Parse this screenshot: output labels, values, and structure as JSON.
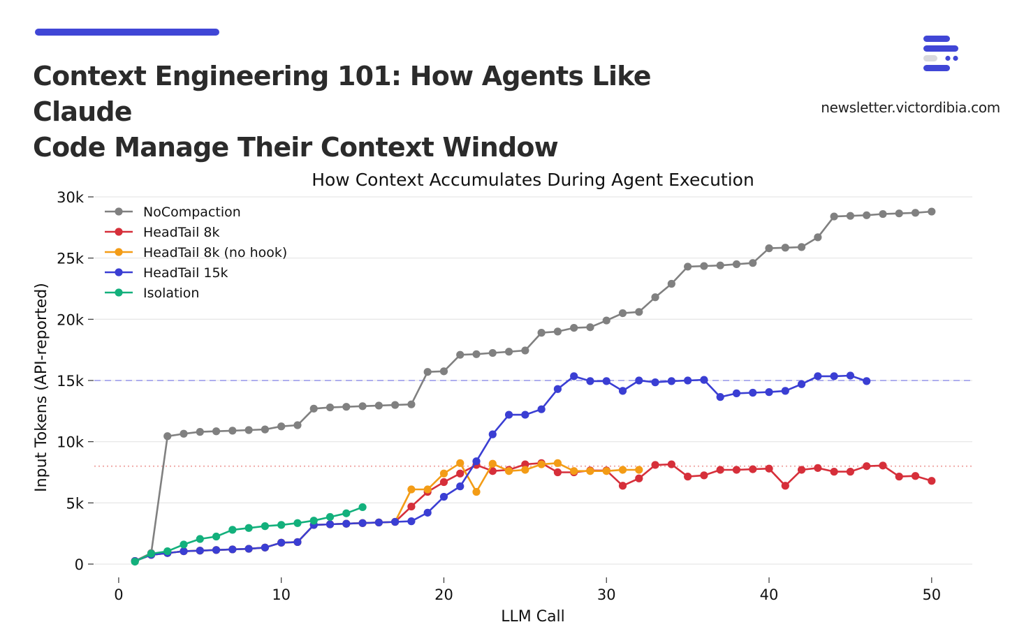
{
  "header": {
    "title_line1": "Context Engineering 101: How Agents Like Claude",
    "title_line2": "Code Manage Their Context Window",
    "site": "newsletter.victordibia.com",
    "logo_icon": "newsletter-logo-icon"
  },
  "colors": {
    "accent": "#4046d6",
    "gridline": "#e8e8e8"
  },
  "chart_data": {
    "type": "line",
    "title": "How Context Accumulates During Agent Execution",
    "xlabel": "LLM Call",
    "ylabel": "Input Tokens (API-reported)",
    "xlim": [
      -1.5,
      52.5
    ],
    "ylim": [
      -800,
      30000
    ],
    "xticks": [
      0,
      10,
      20,
      30,
      40,
      50
    ],
    "yticks": [
      0,
      5000,
      10000,
      15000,
      20000,
      25000,
      30000
    ],
    "ytick_labels": [
      "0",
      "5k",
      "10k",
      "15k",
      "20k",
      "25k",
      "30k"
    ],
    "grid": "horizontal",
    "legend_position": "upper-left",
    "reference_lines": [
      {
        "y": 15000,
        "color": "#aeaeee",
        "style": "dashed"
      },
      {
        "y": 8000,
        "color": "#f0aaa8",
        "style": "dotted"
      }
    ],
    "series": [
      {
        "name": "NoCompaction",
        "color": "#808080",
        "x": [
          1,
          2,
          3,
          4,
          5,
          6,
          7,
          8,
          9,
          10,
          11,
          12,
          13,
          14,
          15,
          16,
          17,
          18,
          19,
          20,
          21,
          22,
          23,
          24,
          25,
          26,
          27,
          28,
          29,
          30,
          31,
          32,
          33,
          34,
          35,
          36,
          37,
          38,
          39,
          40,
          41,
          42,
          43,
          44,
          45,
          46,
          47,
          48,
          49,
          50
        ],
        "y": [
          250,
          900,
          10450,
          10650,
          10800,
          10850,
          10900,
          10950,
          11000,
          11250,
          11350,
          12700,
          12800,
          12850,
          12900,
          12950,
          13000,
          13050,
          15700,
          15750,
          17100,
          17150,
          17250,
          17350,
          17450,
          18900,
          19000,
          19300,
          19350,
          19900,
          20500,
          20600,
          21800,
          22900,
          24300,
          24350,
          24400,
          24500,
          24600,
          25800,
          25850,
          25900,
          26700,
          28400,
          28450,
          28500,
          28600,
          28650,
          28700,
          28800
        ]
      },
      {
        "name": "HeadTail 8k",
        "color": "#d62f3a",
        "x": [
          1,
          2,
          3,
          4,
          5,
          6,
          7,
          8,
          9,
          10,
          11,
          12,
          13,
          14,
          15,
          16,
          17,
          18,
          19,
          20,
          21,
          22,
          23,
          24,
          25,
          26,
          27,
          28,
          29,
          30,
          31,
          32,
          33,
          34,
          35,
          36,
          37,
          38,
          39,
          40,
          41,
          42,
          43,
          44,
          45,
          46,
          47,
          48,
          49,
          50
        ],
        "y": [
          250,
          750,
          900,
          1050,
          1100,
          1150,
          1200,
          1250,
          1350,
          1750,
          1800,
          3200,
          3250,
          3300,
          3350,
          3400,
          3450,
          4700,
          5900,
          6700,
          7400,
          8100,
          7600,
          7700,
          8150,
          8250,
          7500,
          7500,
          7650,
          7650,
          6400,
          7000,
          8100,
          8150,
          7150,
          7250,
          7700,
          7700,
          7750,
          7800,
          6400,
          7700,
          7850,
          7550,
          7550,
          8000,
          8050,
          7150,
          7200,
          6800
        ]
      },
      {
        "name": "HeadTail 8k (no hook)",
        "color": "#f39c16",
        "x": [
          1,
          2,
          3,
          4,
          5,
          6,
          7,
          8,
          9,
          10,
          11,
          12,
          13,
          14,
          15,
          16,
          17,
          18,
          19,
          20,
          21,
          22,
          23,
          24,
          25,
          26,
          27,
          28,
          29,
          30,
          31,
          32
        ],
        "y": [
          250,
          750,
          900,
          1050,
          1100,
          1150,
          1200,
          1250,
          1350,
          1750,
          1800,
          3200,
          3250,
          3300,
          3350,
          3400,
          3450,
          6100,
          6100,
          7400,
          8250,
          5900,
          8200,
          7600,
          7700,
          8150,
          8250,
          7600,
          7600,
          7600,
          7700,
          7700
        ]
      },
      {
        "name": "HeadTail 15k",
        "color": "#3a3ed3",
        "x": [
          1,
          2,
          3,
          4,
          5,
          6,
          7,
          8,
          9,
          10,
          11,
          12,
          13,
          14,
          15,
          16,
          17,
          18,
          19,
          20,
          21,
          22,
          23,
          24,
          25,
          26,
          27,
          28,
          29,
          30,
          31,
          32,
          33,
          34,
          35,
          36,
          37,
          38,
          39,
          40,
          41,
          42,
          43,
          44,
          45,
          46
        ],
        "y": [
          250,
          750,
          900,
          1050,
          1100,
          1150,
          1200,
          1250,
          1350,
          1750,
          1800,
          3200,
          3250,
          3300,
          3350,
          3400,
          3450,
          3500,
          4200,
          5500,
          6350,
          8400,
          10600,
          12200,
          12200,
          12650,
          14300,
          15350,
          14950,
          14950,
          14150,
          15000,
          14850,
          14950,
          15000,
          15050,
          13650,
          13950,
          14000,
          14050,
          14150,
          14700,
          15350,
          15350,
          15400,
          14950
        ]
      },
      {
        "name": "Isolation",
        "color": "#13b07c",
        "x": [
          1,
          2,
          3,
          4,
          5,
          6,
          7,
          8,
          9,
          10,
          11,
          12,
          13,
          14,
          15
        ],
        "y": [
          200,
          850,
          1050,
          1600,
          2050,
          2250,
          2800,
          2950,
          3100,
          3200,
          3350,
          3550,
          3850,
          4150,
          4650
        ]
      }
    ]
  }
}
